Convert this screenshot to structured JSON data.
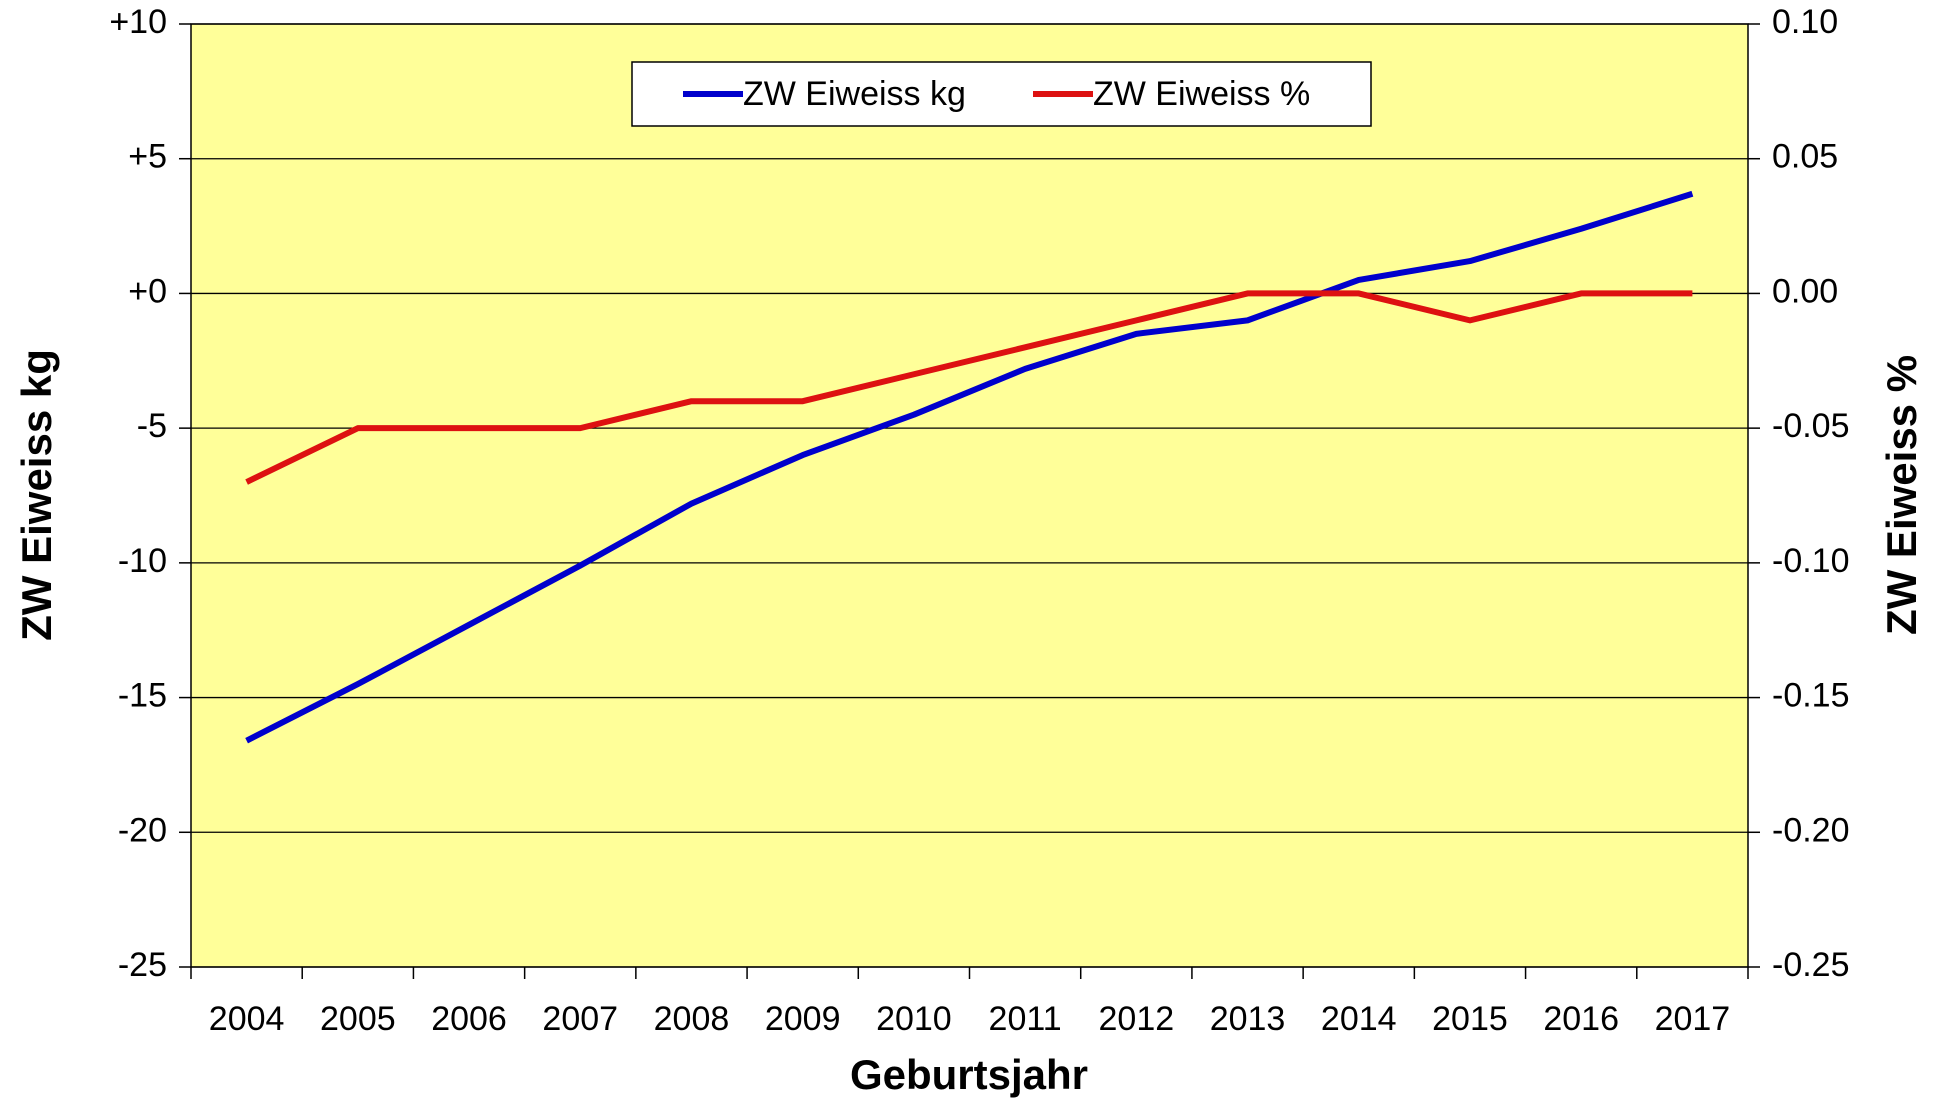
{
  "chart_data": {
    "type": "line",
    "x_label": "Geburtsjahr",
    "y_label": "ZW Eiweiss kg",
    "y2_label": "ZW Eiweiss %",
    "categories": [
      "2004",
      "2005",
      "2006",
      "2007",
      "2008",
      "2009",
      "2010",
      "2011",
      "2012",
      "2013",
      "2014",
      "2015",
      "2016",
      "2017"
    ],
    "series": [
      {
        "name": "ZW Eiweiss kg",
        "color": "#0000cc",
        "values": [
          -16.6,
          -14.5,
          -12.3,
          -10.1,
          -7.8,
          -6.0,
          -4.5,
          -2.8,
          -1.5,
          -1.0,
          0.5,
          1.2,
          2.4,
          3.7
        ]
      },
      {
        "name": "ZW Eiweiss %",
        "color": "#dd1111",
        "axis": "y2",
        "values": [
          -0.07,
          -0.05,
          -0.05,
          -0.05,
          -0.04,
          -0.04,
          -0.03,
          -0.02,
          -0.01,
          0,
          0,
          -0.01,
          0,
          0
        ]
      }
    ],
    "ylim": [
      -25,
      10
    ],
    "yticks": [
      {
        "value": 10,
        "label": "+10"
      },
      {
        "value": 5,
        "label": "+5"
      },
      {
        "value": 0,
        "label": "+0"
      },
      -5,
      -10,
      -15,
      -20,
      -25
    ],
    "y2lim": [
      -0.25,
      0.1
    ],
    "y2ticks": [
      {
        "value": 0.1,
        "label": "0.10"
      },
      0.05,
      {
        "value": 0,
        "label": "0.00"
      },
      -0.05,
      {
        "value": -0.1,
        "label": "-0.10"
      },
      -0.15,
      {
        "value": -0.2,
        "label": "-0.20"
      },
      -0.25
    ],
    "grid": true,
    "background": "#ffff99",
    "legend": "top"
  }
}
